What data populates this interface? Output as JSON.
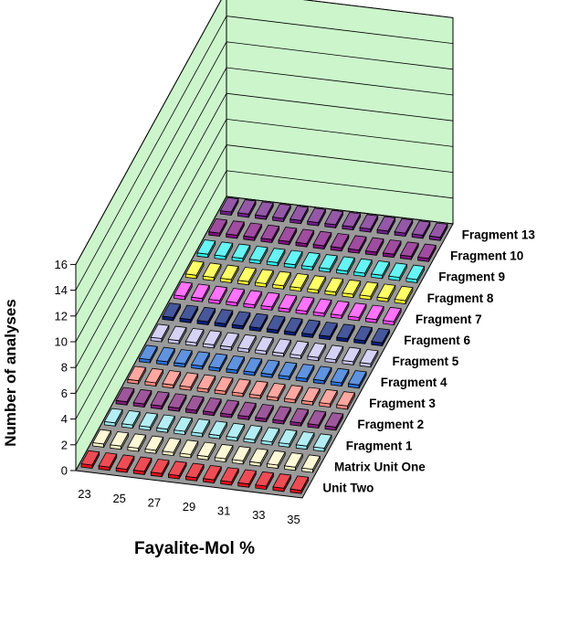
{
  "chart_data": {
    "type": "bar",
    "subtype": "3d-column",
    "xlabel": "Fayalite-Mol %",
    "ylabel": "Number of analyses",
    "y_ticks": [
      0,
      2,
      4,
      6,
      8,
      10,
      12,
      14,
      16
    ],
    "ylim": [
      0,
      16
    ],
    "x_tick_labels": [
      "23",
      "25",
      "27",
      "29",
      "31",
      "33",
      "35"
    ],
    "categories": [
      "23",
      "24",
      "25",
      "26",
      "27",
      "28",
      "29",
      "30",
      "31",
      "32",
      "33",
      "34",
      "35"
    ],
    "grid": true,
    "series": [
      {
        "name": "Unit Two",
        "color": "#e8101c",
        "values": [
          0,
          0,
          0,
          0,
          0,
          0,
          0,
          0,
          0,
          0,
          0,
          0,
          0
        ]
      },
      {
        "name": "Matrix Unit One",
        "color": "#fdf6c8",
        "values": [
          0,
          0,
          0,
          0,
          0,
          0,
          0,
          0,
          0,
          0,
          0,
          0,
          0
        ]
      },
      {
        "name": "Fragment 1",
        "color": "#99e8f0",
        "values": [
          0,
          0,
          0,
          0,
          0,
          0,
          0,
          0,
          0,
          0,
          0,
          0,
          0
        ]
      },
      {
        "name": "Fragment 2",
        "color": "#7f1f7a",
        "values": [
          0,
          0,
          0,
          0,
          0,
          0,
          0,
          0,
          0,
          0,
          0,
          0,
          0
        ]
      },
      {
        "name": "Fragment 3",
        "color": "#ff8a80",
        "values": [
          0,
          0,
          0,
          0,
          0,
          0,
          0,
          0,
          0,
          0,
          0,
          0,
          0
        ]
      },
      {
        "name": "Fragment 4",
        "color": "#2a6fd6",
        "values": [
          0,
          0,
          0,
          0,
          0,
          0,
          0,
          0,
          0,
          0,
          0,
          0,
          0
        ]
      },
      {
        "name": "Fragment 5",
        "color": "#c7c3f2",
        "values": [
          0,
          0,
          0,
          0,
          0,
          0,
          0,
          0,
          0,
          0,
          0,
          0,
          0
        ]
      },
      {
        "name": "Fragment 6",
        "color": "#0a1f7a",
        "values": [
          0,
          0,
          0,
          0,
          0,
          0,
          0,
          0,
          0,
          0,
          0,
          0,
          0
        ]
      },
      {
        "name": "Fragment 7",
        "color": "#ff44ff",
        "values": [
          0,
          0,
          0,
          0,
          0,
          0,
          0,
          0,
          0,
          0,
          0,
          0,
          0
        ]
      },
      {
        "name": "Fragment 8",
        "color": "#ffff33",
        "values": [
          0,
          0,
          0,
          0,
          0,
          0,
          0,
          0,
          0,
          0,
          0,
          0,
          0
        ]
      },
      {
        "name": "Fragment 9",
        "color": "#33f0f0",
        "values": [
          0,
          0,
          0,
          0,
          0,
          0,
          0,
          0,
          0,
          0,
          0,
          0,
          0
        ]
      },
      {
        "name": "Fragment 10",
        "color": "#801080",
        "values": [
          0,
          0,
          0,
          0,
          0,
          0,
          0,
          0,
          0,
          0,
          0,
          0,
          0
        ]
      },
      {
        "name": "Fragment 13",
        "color": "#70208a",
        "values": [
          0,
          0,
          0,
          0,
          0,
          0,
          0,
          0,
          0,
          0,
          0,
          0,
          0
        ]
      }
    ]
  }
}
